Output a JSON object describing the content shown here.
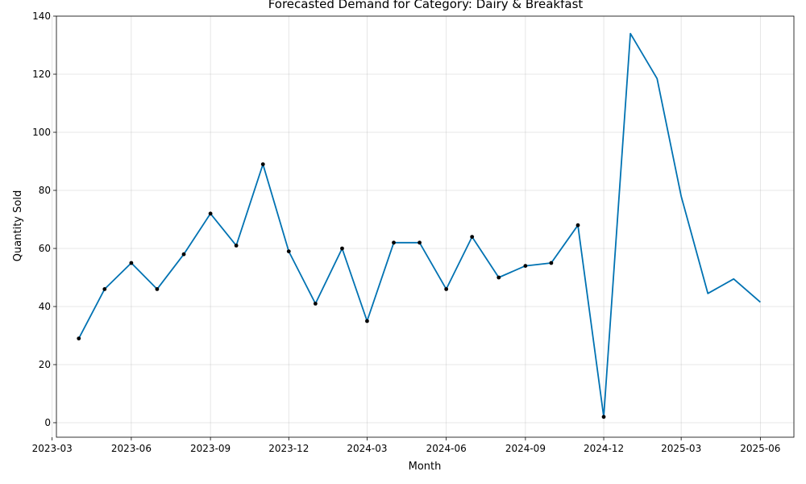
{
  "chart_data": {
    "type": "line",
    "title": "Forecasted Demand for Category: Dairy & Breakfast",
    "xlabel": "Month",
    "ylabel": "Quantity Sold",
    "x_ticks": [
      "2023-03",
      "2023-06",
      "2023-09",
      "2023-12",
      "2024-03",
      "2024-06",
      "2024-09",
      "2024-12",
      "2025-03",
      "2025-06"
    ],
    "y_ticks": [
      0,
      20,
      40,
      60,
      80,
      100,
      120,
      140
    ],
    "ylim": [
      -5,
      140
    ],
    "xlim": [
      "2023-03-06",
      "2025-07-10"
    ],
    "grid": true,
    "line_color": "#0072B2",
    "marker_color": "#000000",
    "series": [
      {
        "x": [
          "2023-04-01",
          "2023-05-01",
          "2023-06-01",
          "2023-07-01",
          "2023-08-01",
          "2023-09-01",
          "2023-10-01",
          "2023-11-01",
          "2023-12-01",
          "2024-01-01",
          "2024-02-01",
          "2024-03-01",
          "2024-04-01",
          "2024-05-01",
          "2024-06-01",
          "2024-07-01",
          "2024-08-01",
          "2024-09-01",
          "2024-10-01",
          "2024-11-01",
          "2024-12-01",
          "2025-01-01",
          "2025-02-01",
          "2025-03-01",
          "2025-04-01",
          "2025-05-01",
          "2025-06-01"
        ],
        "values": [
          29,
          46,
          55,
          46,
          58,
          72,
          61,
          89,
          59,
          41,
          60,
          35,
          62,
          62,
          46,
          64,
          50,
          54,
          55,
          68,
          2,
          134,
          118.5,
          78,
          44.5,
          49.5,
          41.5
        ],
        "markers_count": 21
      }
    ]
  }
}
